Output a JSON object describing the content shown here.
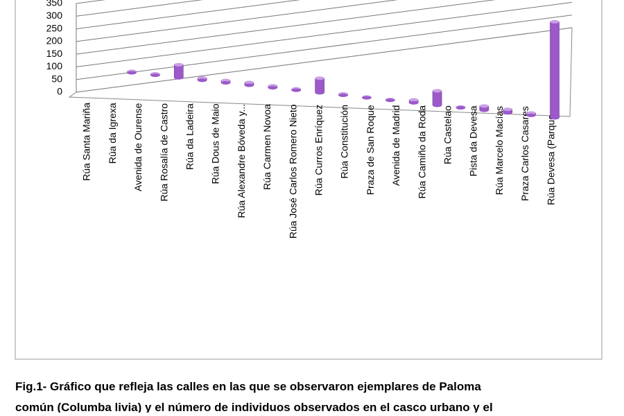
{
  "chart_data": {
    "type": "bar3d",
    "categories": [
      "Rúa Santa Mariña",
      "Rúa da Igrexa",
      "Avenida de Ourense",
      "Rúa Rosalía de Castro",
      "Rúa da Ladeira",
      "Rúa Dous de Maio",
      "Rúa Alexandre Bóveda y...",
      "Rúa Carmen Novoa",
      "Rúa José Carlos Romero Nieto",
      "Rúa Curros Enríquez",
      "Rúa Constitución",
      "Praza de San Roque",
      "Avenida de Madrid",
      "Rúa Camiño da Roda",
      "Rúa Castelao",
      "Pista da Devesa",
      "Rúa Marcelo Macías",
      "Praza Carlos Casares",
      "Rúa Devesa (Parque..."
    ],
    "values": [
      5,
      5,
      45,
      8,
      8,
      10,
      7,
      5,
      50,
      5,
      3,
      3,
      10,
      50,
      3,
      15,
      12,
      8,
      330
    ],
    "color": "#9b59c9",
    "ylim": [
      0,
      350
    ],
    "yticks": [
      0,
      50,
      100,
      150,
      200,
      250,
      300,
      350
    ],
    "grid": true
  },
  "caption": [
    "Fig.1- Gráfico que refleja las calles en las que se observaron ejemplares de Paloma",
    "común (Columba livia) y el número de individuos observados en el casco urbano y el"
  ]
}
